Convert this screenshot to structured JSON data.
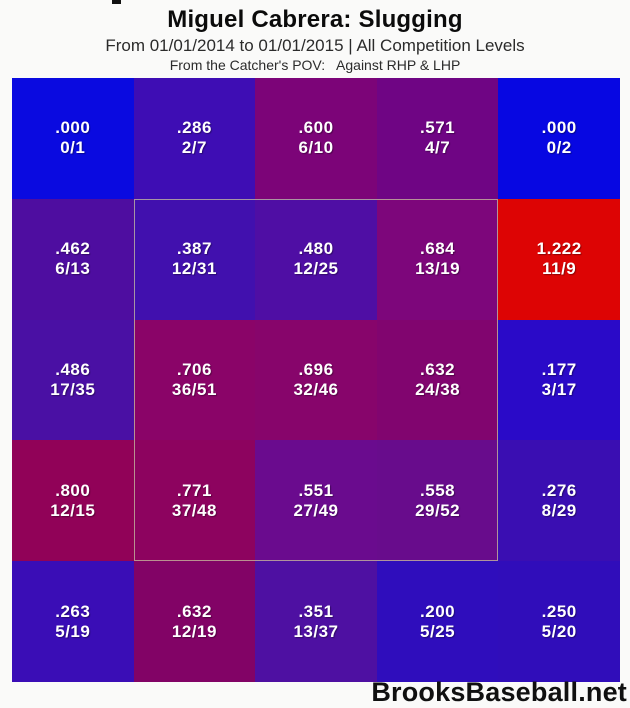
{
  "header": {
    "title": "Miguel Cabrera: Slugging",
    "subtitle": "From 01/01/2014 to 01/01/2015 | All Competition Levels",
    "pov_line": "From the Catcher's POV:   Against RHP & LHP"
  },
  "watermark": "BrooksBaseball.net",
  "chart_data": {
    "type": "heatmap",
    "title": "Miguel Cabrera: Slugging",
    "subtitle": "From 01/01/2014 to 01/01/2015 | All Competition Levels",
    "annotation": "From the Catcher's POV: Against RHP & LHP",
    "rows": 5,
    "cols": 5,
    "value_format": "slugging (hits-total-bases ratio shown as TB/AB)",
    "color_scale": "blue (low slugging) through purple/magenta to red (high slugging)",
    "strike_zone_outline": {
      "col_start": 2,
      "col_end": 4,
      "row_start": 2,
      "row_end": 4,
      "border_color": "#c8c1a0"
    },
    "cells": [
      {
        "row": 1,
        "col": 1,
        "slg": ".000",
        "count": "0/1",
        "value": 0.0,
        "color": "#0a0ae0"
      },
      {
        "row": 1,
        "col": 2,
        "slg": ".286",
        "count": "2/7",
        "value": 0.286,
        "color": "#3e0db4"
      },
      {
        "row": 1,
        "col": 3,
        "slg": ".600",
        "count": "6/10",
        "value": 0.6,
        "color": "#7c0478"
      },
      {
        "row": 1,
        "col": 4,
        "slg": ".571",
        "count": "4/7",
        "value": 0.571,
        "color": "#6f0584"
      },
      {
        "row": 1,
        "col": 5,
        "slg": ".000",
        "count": "0/2",
        "value": 0.0,
        "color": "#0707e2"
      },
      {
        "row": 2,
        "col": 1,
        "slg": ".462",
        "count": "6/13",
        "value": 0.462,
        "color": "#4e0da0"
      },
      {
        "row": 2,
        "col": 2,
        "slg": ".387",
        "count": "12/31",
        "value": 0.387,
        "color": "#4110ae"
      },
      {
        "row": 2,
        "col": 3,
        "slg": ".480",
        "count": "12/25",
        "value": 0.48,
        "color": "#4f0ea4"
      },
      {
        "row": 2,
        "col": 4,
        "slg": ".684",
        "count": "13/19",
        "value": 0.684,
        "color": "#7d067b"
      },
      {
        "row": 2,
        "col": 5,
        "slg": "1.222",
        "count": "11/9",
        "value": 1.222,
        "color": "#dd0404"
      },
      {
        "row": 3,
        "col": 1,
        "slg": ".486",
        "count": "17/35",
        "value": 0.486,
        "color": "#4a10a4"
      },
      {
        "row": 3,
        "col": 2,
        "slg": ".706",
        "count": "36/51",
        "value": 0.706,
        "color": "#8a0468"
      },
      {
        "row": 3,
        "col": 3,
        "slg": ".696",
        "count": "32/46",
        "value": 0.696,
        "color": "#87056b"
      },
      {
        "row": 3,
        "col": 4,
        "slg": ".632",
        "count": "24/38",
        "value": 0.632,
        "color": "#81056f"
      },
      {
        "row": 3,
        "col": 5,
        "slg": ".177",
        "count": "3/17",
        "value": 0.177,
        "color": "#2a0ac8"
      },
      {
        "row": 4,
        "col": 1,
        "slg": ".800",
        "count": "12/15",
        "value": 0.8,
        "color": "#910258"
      },
      {
        "row": 4,
        "col": 2,
        "slg": ".771",
        "count": "37/48",
        "value": 0.771,
        "color": "#8d035f"
      },
      {
        "row": 4,
        "col": 3,
        "slg": ".551",
        "count": "27/49",
        "value": 0.551,
        "color": "#6a0b8e"
      },
      {
        "row": 4,
        "col": 4,
        "slg": ".558",
        "count": "29/52",
        "value": 0.558,
        "color": "#680c8c"
      },
      {
        "row": 4,
        "col": 5,
        "slg": ".276",
        "count": "8/29",
        "value": 0.276,
        "color": "#3a0eb2"
      },
      {
        "row": 5,
        "col": 1,
        "slg": ".263",
        "count": "5/19",
        "value": 0.263,
        "color": "#3a0db6"
      },
      {
        "row": 5,
        "col": 2,
        "slg": ".632",
        "count": "12/19",
        "value": 0.632,
        "color": "#820366"
      },
      {
        "row": 5,
        "col": 3,
        "slg": ".351",
        "count": "13/37",
        "value": 0.351,
        "color": "#4e10a2"
      },
      {
        "row": 5,
        "col": 4,
        "slg": ".200",
        "count": "5/25",
        "value": 0.2,
        "color": "#2f0dbc"
      },
      {
        "row": 5,
        "col": 5,
        "slg": ".250",
        "count": "5/20",
        "value": 0.25,
        "color": "#300dba"
      }
    ]
  }
}
